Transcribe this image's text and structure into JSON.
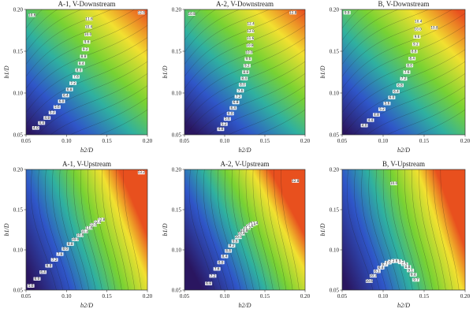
{
  "chart_data": [
    {
      "type": "heatmap",
      "title": "A-1, V-Downstream",
      "xlabel": "b2/D",
      "ylabel": "b1/D",
      "xlim": [
        0.05,
        0.2
      ],
      "ylim": [
        0.05,
        0.2
      ],
      "xticks": [
        "0.05",
        "0.10",
        "0.15",
        "0.20"
      ],
      "yticks": [
        "0.05",
        "0.10",
        "0.15",
        "0.20"
      ],
      "colormap": [
        "#2a1660",
        "#2f56c8",
        "#2fb0a0",
        "#78d233",
        "#f2e030",
        "#e8501e"
      ],
      "contour_labels": [
        "10.6",
        "12.0",
        "11.6",
        "10.4",
        "10.0",
        "9.6",
        "9.2",
        "8.8",
        "8.4",
        "8.0",
        "7.6",
        "7.2",
        "6.8",
        "6.4",
        "6.0",
        "5.6",
        "5.2",
        "4.8",
        "4.4",
        "4.0"
      ]
    },
    {
      "type": "heatmap",
      "title": "A-2, V-Downstream",
      "xlabel": "b2/D",
      "ylabel": "b1/D",
      "xlim": [
        0.05,
        0.2
      ],
      "ylim": [
        0.05,
        0.2
      ],
      "xticks": [
        "0.05",
        "0.10",
        "0.15",
        "0.20"
      ],
      "yticks": [
        "0.05",
        "0.10",
        "0.15",
        "0.20"
      ],
      "colormap": [
        "#2a1660",
        "#2f56c8",
        "#2fb0a0",
        "#78d233",
        "#f2e030",
        "#e8501e"
      ],
      "contour_labels": [
        "10.8",
        "12.8",
        "12.4",
        "12.0",
        "11.6",
        "10.8",
        "10.0",
        "9.6",
        "9.2",
        "8.8",
        "8.4",
        "8.0",
        "7.6",
        "7.2",
        "6.8",
        "6.4",
        "6.0",
        "5.6",
        "5.2",
        "4.8"
      ]
    },
    {
      "type": "heatmap",
      "title": "B, V-Downstream",
      "xlabel": "b2/D",
      "ylabel": "b1/D",
      "xlim": [
        0.05,
        0.2
      ],
      "ylim": [
        0.05,
        0.2
      ],
      "xticks": [
        "0.05",
        "0.10",
        "0.15",
        "0.20"
      ],
      "yticks": [
        "0.05",
        "0.10",
        "0.15",
        "0.20"
      ],
      "colormap": [
        "#2a1660",
        "#2f56c8",
        "#2fb0a0",
        "#78d233",
        "#f2e030",
        "#e8501e"
      ],
      "contour_labels": [
        "9.8",
        "10.8",
        "10.4",
        "10.0",
        "9.6",
        "9.2",
        "8.8",
        "8.4",
        "8.0",
        "7.6",
        "7.2",
        "6.8",
        "6.4",
        "6.0",
        "5.6",
        "5.2",
        "4.8",
        "4.4",
        "4.0"
      ]
    },
    {
      "type": "heatmap",
      "title": "A-1, V-Upstream",
      "xlabel": "b2/D",
      "ylabel": "b1/D",
      "xlim": [
        0.05,
        0.2
      ],
      "ylim": [
        0.05,
        0.2
      ],
      "xticks": [
        "0.05",
        "0.10",
        "0.15",
        "0.20"
      ],
      "yticks": [
        "0.05",
        "0.10",
        "0.15",
        "0.20"
      ],
      "colormap": [
        "#2a1660",
        "#2f56c8",
        "#2fb0a0",
        "#78d233",
        "#f2e030",
        "#e8501e"
      ],
      "contour_labels": [
        "13.2",
        "12.8",
        "12.4",
        "12.0",
        "11.6",
        "11.2",
        "10.8",
        "10.0",
        "8.8",
        "8.0",
        "7.6",
        "7.2",
        "6.8",
        "6.4",
        "6.0",
        "5.6"
      ]
    },
    {
      "type": "heatmap",
      "title": "A-2, V-Upstream",
      "xlabel": "b2/D",
      "ylabel": "b1/D",
      "xlim": [
        0.05,
        0.2
      ],
      "ylim": [
        0.05,
        0.2
      ],
      "xticks": [
        "0.05",
        "0.10",
        "0.15",
        "0.20"
      ],
      "yticks": [
        "0.05",
        "0.10",
        "0.15",
        "0.20"
      ],
      "colormap": [
        "#2a1660",
        "#2f56c8",
        "#2fb0a0",
        "#78d233",
        "#f2e030",
        "#e8501e"
      ],
      "contour_labels": [
        "12.8",
        "12.4",
        "12.0",
        "11.6",
        "11.2",
        "10.8",
        "10.4",
        "10.0",
        "9.6",
        "9.2",
        "8.8",
        "8.4",
        "8.0",
        "7.6",
        "7.2",
        "6.8"
      ]
    },
    {
      "type": "heatmap",
      "title": "B, V-Upstream",
      "xlabel": "b2/D",
      "ylabel": "b1/D",
      "xlim": [
        0.05,
        0.2
      ],
      "ylim": [
        0.05,
        0.2
      ],
      "xticks": [
        "0.05",
        "0.10",
        "0.15",
        "0.20"
      ],
      "yticks": [
        "0.05",
        "0.10",
        "0.15",
        "0.20"
      ],
      "colormap": [
        "#2a1660",
        "#2f56c8",
        "#2fb0a0",
        "#78d233",
        "#f2e030",
        "#e8501e"
      ],
      "contour_labels": [
        "10.0",
        "9.7",
        "9.4",
        "9.1",
        "8.8",
        "8.5",
        "8.2",
        "7.9",
        "7.6",
        "7.3",
        "7.0",
        "6.7",
        "6.4",
        "6.1",
        "10.3",
        "10.6"
      ]
    }
  ]
}
